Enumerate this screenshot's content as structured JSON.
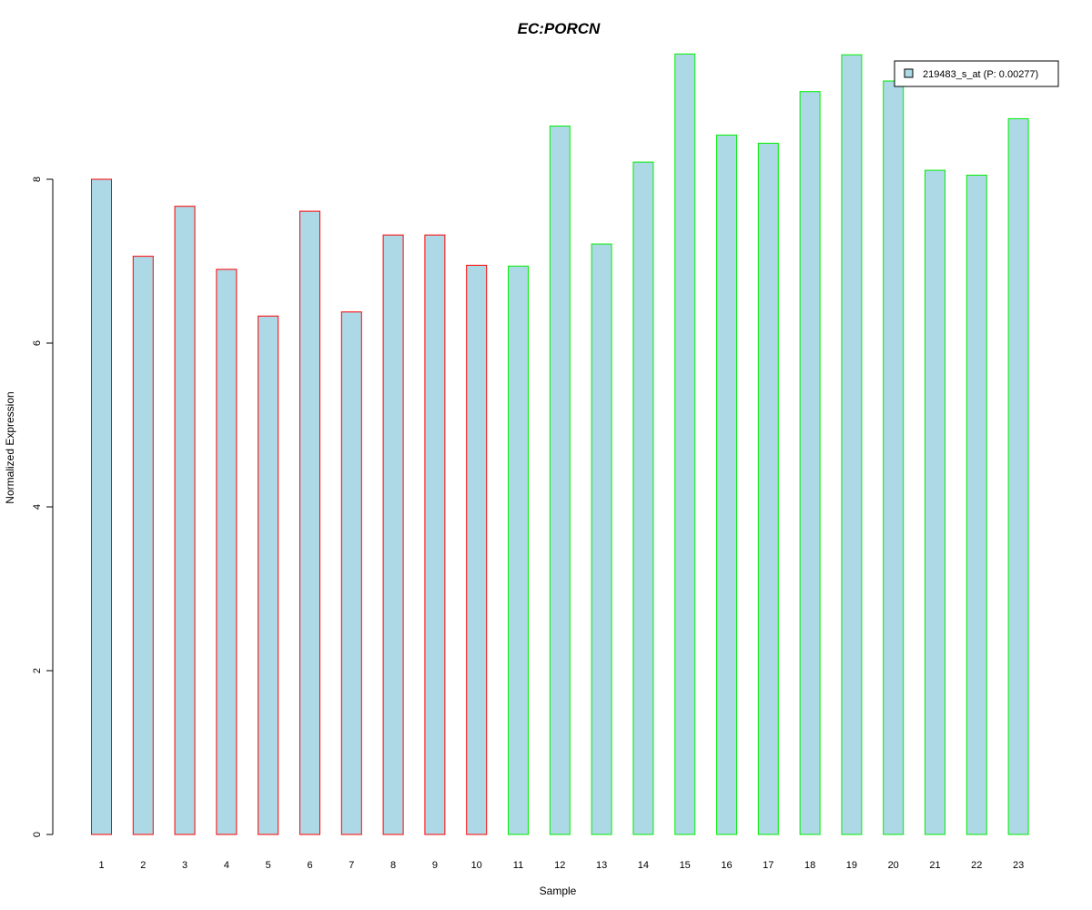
{
  "colors": {
    "bar_fill": "#add8e6",
    "group1_border": "#ff0000",
    "group2_border": "#00ee00",
    "title": "#0000cd",
    "axis": "#000000"
  },
  "chart_data": {
    "type": "bar",
    "title": "EC:PORCN",
    "xlabel": "Sample",
    "ylabel": "Normalized Expression",
    "ylim": [
      0,
      9.6
    ],
    "yticks": [
      0,
      2,
      4,
      6,
      8
    ],
    "grid": false,
    "legend": {
      "position": "top-right",
      "label": "219483_s_at (P: 0.00277)"
    },
    "categories": [
      "1",
      "2",
      "3",
      "4",
      "5",
      "6",
      "7",
      "8",
      "9",
      "10",
      "11",
      "12",
      "13",
      "14",
      "15",
      "16",
      "17",
      "18",
      "19",
      "20",
      "21",
      "22",
      "23"
    ],
    "values": [
      8.0,
      7.06,
      7.67,
      6.9,
      6.33,
      7.61,
      6.38,
      7.32,
      7.32,
      6.95,
      6.94,
      8.65,
      7.21,
      8.21,
      9.53,
      8.54,
      8.44,
      9.07,
      9.52,
      9.2,
      8.11,
      8.05,
      8.74
    ],
    "groups": [
      "group1",
      "group1",
      "group1",
      "group1",
      "group1",
      "group1",
      "group1",
      "group1",
      "group1",
      "group1",
      "group2",
      "group2",
      "group2",
      "group2",
      "group2",
      "group2",
      "group2",
      "group2",
      "group2",
      "group2",
      "group2",
      "group2",
      "group2"
    ]
  }
}
